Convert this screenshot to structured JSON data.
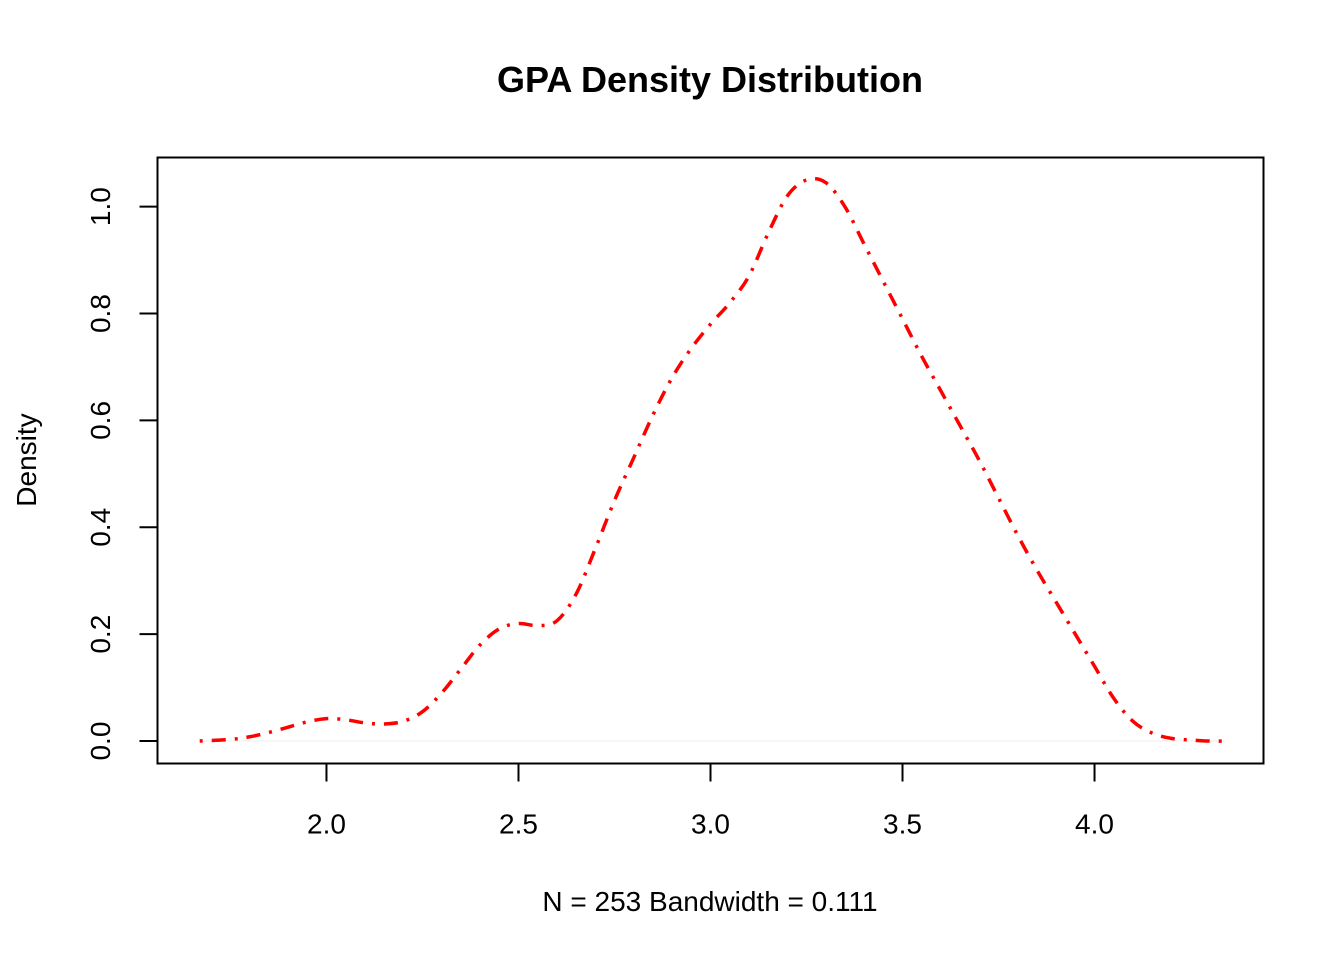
{
  "chart_data": {
    "type": "line",
    "title": "GPA Density Distribution",
    "xlabel": "N = 253   Bandwidth = 0.111",
    "ylabel": "Density",
    "xlim": [
      1.56,
      4.44
    ],
    "ylim": [
      -0.042,
      1.092
    ],
    "x_ticks": [
      "2.0",
      "2.5",
      "3.0",
      "3.5",
      "4.0"
    ],
    "y_ticks": [
      "0.0",
      "0.2",
      "0.4",
      "0.6",
      "0.8",
      "1.0"
    ],
    "grid": false,
    "legend": "none",
    "line_color": "#ff0000",
    "line_style": "dashdot",
    "baseline": 0,
    "series": [
      {
        "x": [
          1.67,
          1.75,
          1.8,
          1.85,
          1.9,
          1.95,
          2.0,
          2.05,
          2.1,
          2.15,
          2.2,
          2.25,
          2.3,
          2.35,
          2.4,
          2.45,
          2.5,
          2.55,
          2.6,
          2.65,
          2.7,
          2.75,
          2.8,
          2.85,
          2.9,
          2.95,
          3.0,
          3.05,
          3.1,
          3.15,
          3.2,
          3.25,
          3.3,
          3.35,
          3.4,
          3.45,
          3.5,
          3.55,
          3.6,
          3.65,
          3.7,
          3.75,
          3.8,
          3.85,
          3.9,
          3.95,
          4.0,
          4.05,
          4.1,
          4.15,
          4.2,
          4.25,
          4.3,
          4.34
        ],
        "y": [
          0.0,
          0.003,
          0.008,
          0.016,
          0.026,
          0.036,
          0.042,
          0.04,
          0.034,
          0.032,
          0.037,
          0.055,
          0.09,
          0.135,
          0.18,
          0.21,
          0.22,
          0.216,
          0.225,
          0.275,
          0.36,
          0.45,
          0.53,
          0.61,
          0.68,
          0.735,
          0.78,
          0.82,
          0.87,
          0.95,
          1.02,
          1.05,
          1.045,
          1.0,
          0.93,
          0.86,
          0.79,
          0.72,
          0.655,
          0.59,
          0.525,
          0.455,
          0.385,
          0.32,
          0.26,
          0.2,
          0.14,
          0.08,
          0.037,
          0.015,
          0.005,
          0.002,
          0.0,
          0.0
        ]
      }
    ]
  }
}
